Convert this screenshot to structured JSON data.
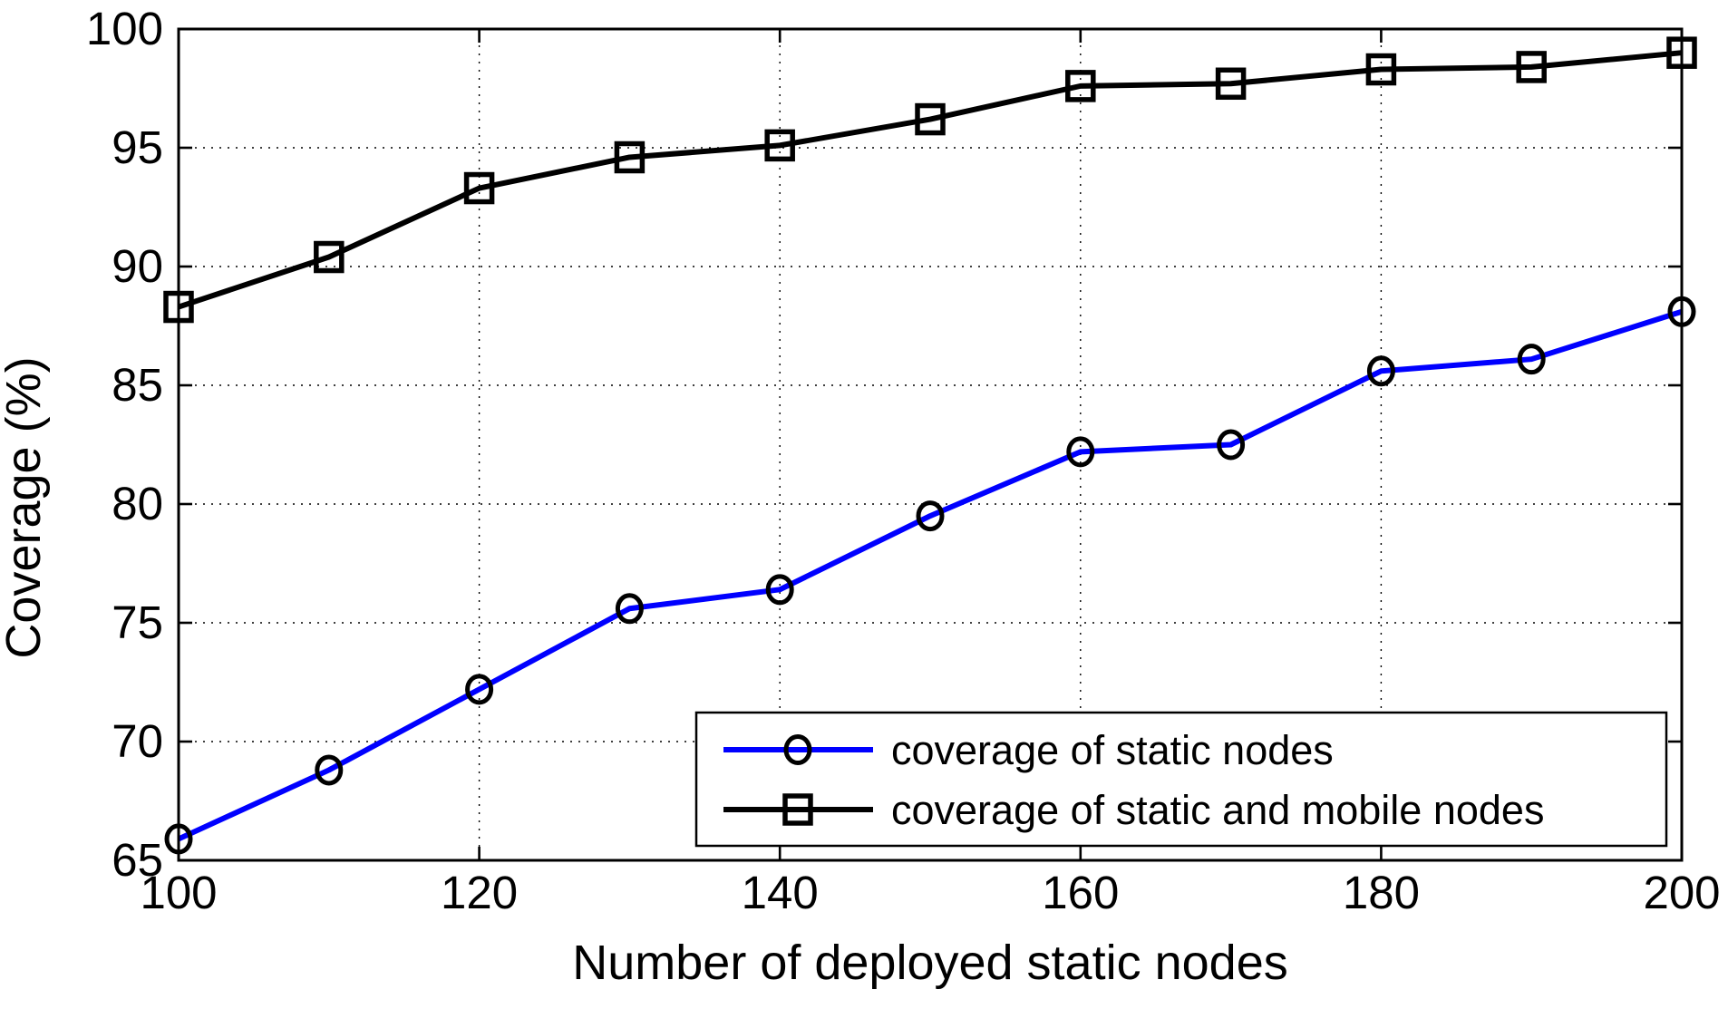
{
  "chart_data": {
    "type": "line",
    "title": "",
    "xlabel": "Number of deployed static nodes",
    "ylabel": "Coverage (%)",
    "xlim": [
      100,
      200
    ],
    "ylim": [
      65,
      100
    ],
    "x_ticks": [
      100,
      120,
      140,
      160,
      180,
      200
    ],
    "y_ticks": [
      65,
      70,
      75,
      80,
      85,
      90,
      95,
      100
    ],
    "grid": true,
    "legend_position": "lower-right",
    "x": [
      100,
      110,
      120,
      130,
      140,
      150,
      160,
      170,
      180,
      190,
      200
    ],
    "series": [
      {
        "name": "coverage of static nodes",
        "color": "#0000ff",
        "marker": "circle",
        "marker_color": "#000000",
        "values": [
          65.9,
          68.8,
          72.2,
          75.6,
          76.4,
          79.5,
          82.2,
          82.5,
          85.6,
          86.1,
          88.1
        ]
      },
      {
        "name": "coverage of static and mobile nodes",
        "color": "#000000",
        "marker": "square",
        "marker_color": "#000000",
        "values": [
          88.3,
          90.4,
          93.3,
          94.6,
          95.1,
          96.2,
          97.6,
          97.7,
          98.3,
          98.4,
          99.0
        ]
      }
    ]
  },
  "colors": {
    "background": "#ffffff",
    "axis": "#000000",
    "grid": "#000000",
    "series_static": "#0000ff",
    "series_static_mobile": "#000000"
  }
}
